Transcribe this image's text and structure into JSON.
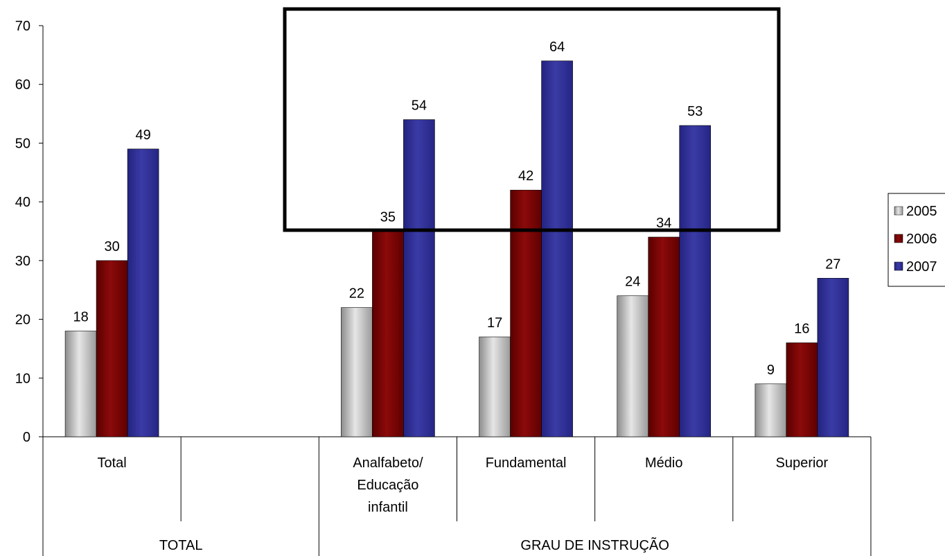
{
  "chart_data": {
    "type": "bar",
    "title": "",
    "xlabel": "",
    "ylabel": "",
    "ylim": [
      0,
      70
    ],
    "yticks": [
      0,
      10,
      20,
      30,
      40,
      50,
      60,
      70
    ],
    "grid": false,
    "legend_position": "right",
    "categories": [
      "Total",
      "",
      "Analfabeto/ Educação infantil",
      "Fundamental",
      "Médio",
      "Superior"
    ],
    "category_lines": [
      [
        "Total"
      ],
      [],
      [
        "Analfabeto/",
        "Educação",
        "infantil"
      ],
      [
        "Fundamental"
      ],
      [
        "Médio"
      ],
      [
        "Superior"
      ]
    ],
    "groups": [
      {
        "label": "TOTAL",
        "span": [
          0,
          1
        ]
      },
      {
        "label": "GRAU DE INSTRUÇÃO",
        "span": [
          2,
          5
        ]
      }
    ],
    "series": [
      {
        "name": "2005",
        "color": "#b4b4b4",
        "values": [
          18,
          null,
          22,
          17,
          24,
          9
        ]
      },
      {
        "name": "2006",
        "color": "#800000",
        "values": [
          30,
          null,
          35,
          42,
          34,
          16
        ]
      },
      {
        "name": "2007",
        "color": "#333399",
        "values": [
          49,
          null,
          54,
          64,
          53,
          27
        ]
      }
    ]
  }
}
